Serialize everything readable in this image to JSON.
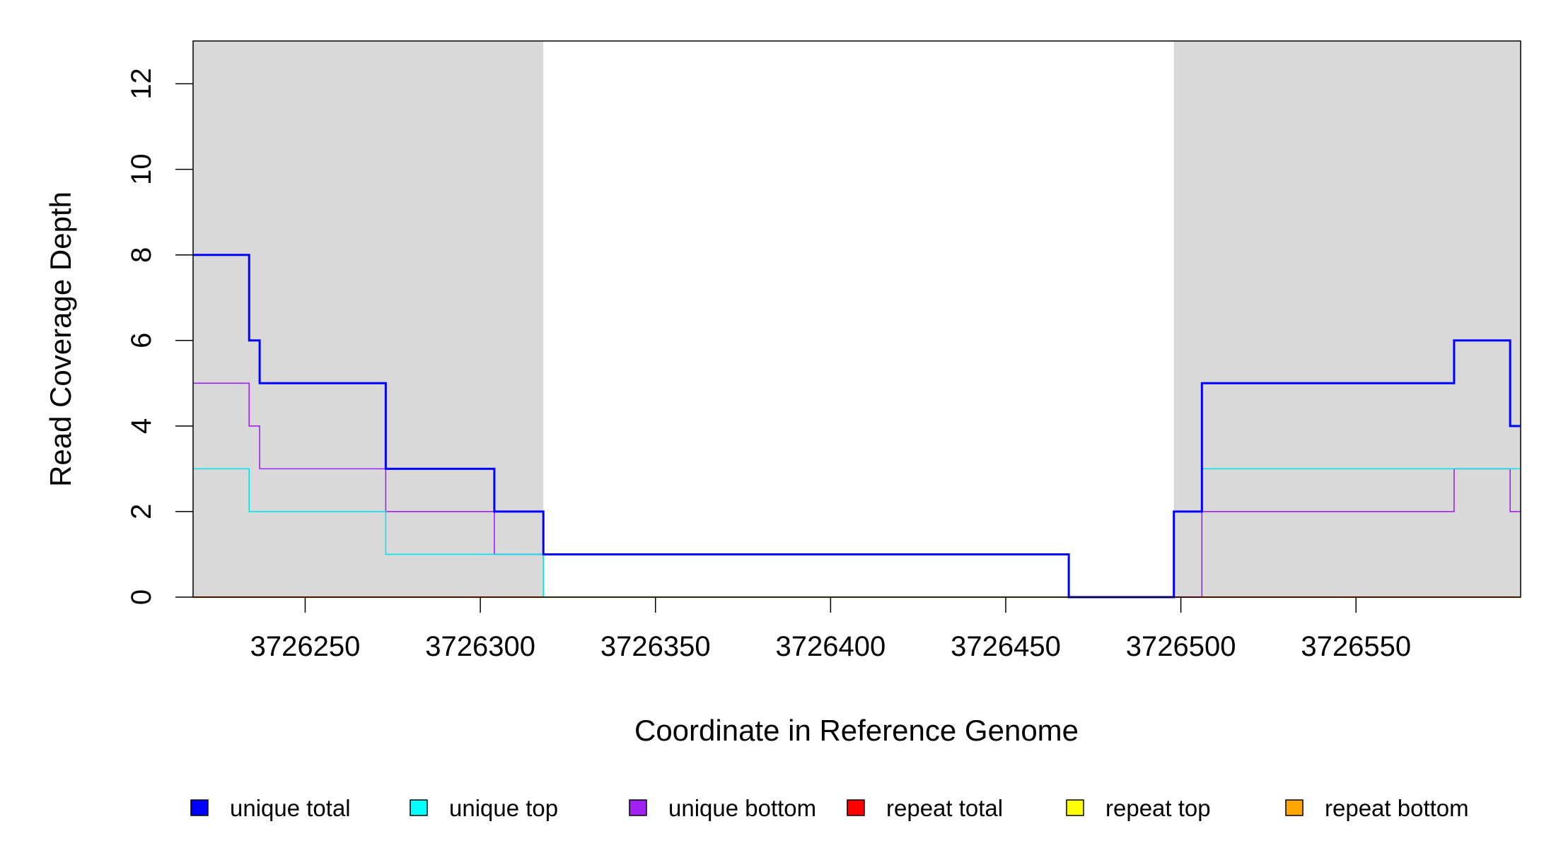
{
  "chart_data": {
    "type": "line",
    "step": true,
    "xlabel": "Coordinate in Reference Genome",
    "ylabel": "Read Coverage Depth",
    "xlim": [
      3726218,
      3726597
    ],
    "ylim": [
      0,
      13
    ],
    "xticks": [
      3726250,
      3726300,
      3726350,
      3726400,
      3726450,
      3726500,
      3726550
    ],
    "yticks": [
      0,
      2,
      4,
      6,
      8,
      10,
      12
    ],
    "grid": false,
    "shaded_regions": [
      {
        "x_start": 3726218,
        "x_end": 3726318,
        "color": "#d9d9d9"
      },
      {
        "x_start": 3726498,
        "x_end": 3726597,
        "color": "#d9d9d9"
      }
    ],
    "series": [
      {
        "name": "unique total",
        "color": "#0000ff",
        "width": 3,
        "points": [
          [
            3726218,
            8
          ],
          [
            3726234,
            8
          ],
          [
            3726234,
            6
          ],
          [
            3726237,
            6
          ],
          [
            3726237,
            5
          ],
          [
            3726273,
            5
          ],
          [
            3726273,
            3
          ],
          [
            3726304,
            3
          ],
          [
            3726304,
            2
          ],
          [
            3726318,
            2
          ],
          [
            3726318,
            1
          ],
          [
            3726468,
            1
          ],
          [
            3726468,
            0
          ],
          [
            3726498,
            0
          ],
          [
            3726498,
            2
          ],
          [
            3726506,
            2
          ],
          [
            3726506,
            5
          ],
          [
            3726578,
            5
          ],
          [
            3726578,
            6
          ],
          [
            3726594,
            6
          ],
          [
            3726594,
            4
          ],
          [
            3726597,
            4
          ]
        ]
      },
      {
        "name": "unique top",
        "color": "#00e5ee",
        "width": 1.6,
        "points": [
          [
            3726218,
            3
          ],
          [
            3726234,
            3
          ],
          [
            3726234,
            2
          ],
          [
            3726273,
            2
          ],
          [
            3726273,
            1
          ],
          [
            3726318,
            1
          ],
          [
            3726318,
            0
          ],
          [
            3726498,
            0
          ],
          [
            3726498,
            2
          ],
          [
            3726506,
            2
          ],
          [
            3726506,
            3
          ],
          [
            3726597,
            3
          ]
        ]
      },
      {
        "name": "unique bottom",
        "color": "#a020f0",
        "width": 1.6,
        "points": [
          [
            3726218,
            5
          ],
          [
            3726234,
            5
          ],
          [
            3726234,
            4
          ],
          [
            3726237,
            4
          ],
          [
            3726237,
            3
          ],
          [
            3726273,
            3
          ],
          [
            3726273,
            2
          ],
          [
            3726304,
            2
          ],
          [
            3726304,
            1
          ],
          [
            3726468,
            1
          ],
          [
            3726468,
            0
          ],
          [
            3726506,
            0
          ],
          [
            3726506,
            2
          ],
          [
            3726578,
            2
          ],
          [
            3726578,
            3
          ],
          [
            3726594,
            3
          ],
          [
            3726594,
            2
          ],
          [
            3726597,
            2
          ]
        ]
      },
      {
        "name": "repeat total",
        "color": "#ff0000",
        "width": 1.6,
        "points": [
          [
            3726218,
            0
          ],
          [
            3726597,
            0
          ]
        ]
      },
      {
        "name": "repeat top",
        "color": "#ffff00",
        "width": 1.6,
        "points": [
          [
            3726218,
            0
          ],
          [
            3726597,
            0
          ]
        ]
      },
      {
        "name": "repeat bottom",
        "color": "#ffa500",
        "width": 2.2,
        "points": [
          [
            3726218,
            0
          ],
          [
            3726597,
            0
          ]
        ]
      }
    ],
    "legend": {
      "placement": "bottom",
      "entries": [
        {
          "label": "unique total",
          "color": "#0000ff"
        },
        {
          "label": "unique top",
          "color": "#00ffff"
        },
        {
          "label": "unique bottom",
          "color": "#a020f0"
        },
        {
          "label": "repeat total",
          "color": "#ff0000"
        },
        {
          "label": "repeat top",
          "color": "#ffff00"
        },
        {
          "label": "repeat bottom",
          "color": "#ffa500"
        }
      ]
    }
  }
}
